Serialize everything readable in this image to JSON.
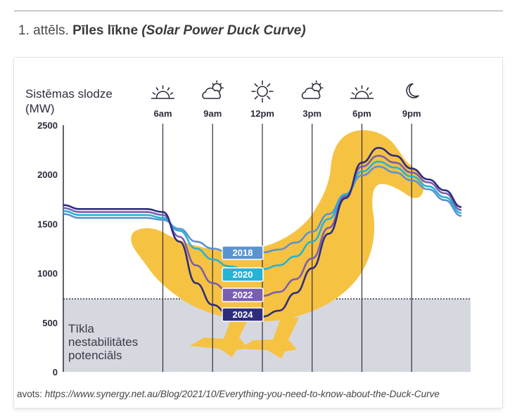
{
  "caption": {
    "number": "1. attēls.",
    "title": "Pīles līkne",
    "subtitle": "(Solar Power Duck Curve)"
  },
  "source": {
    "prefix": "avots:",
    "url": "https://www.synergy.net.au/Blog/2021/10/Everything-you-need-to-know-about-the-Duck-Curve"
  },
  "zone_label": "Tīkla\nnestabilitātes\npotenciāls",
  "colors": {
    "duck": "#f6c242",
    "zone": "#d6d8e0",
    "s2018": "#5b93cf",
    "s2020": "#25b3d6",
    "s2022": "#7a5fb0",
    "s2024": "#2f2d7e"
  },
  "time_icons": [
    {
      "label": "6am",
      "icon": "sunrise-icon"
    },
    {
      "label": "9am",
      "icon": "cloud-sun-icon"
    },
    {
      "label": "12pm",
      "icon": "sun-icon"
    },
    {
      "label": "3pm",
      "icon": "cloud-sun-icon"
    },
    {
      "label": "6pm",
      "icon": "sunset-icon"
    },
    {
      "label": "9pm",
      "icon": "moon-icon"
    }
  ],
  "chart_data": {
    "type": "line",
    "ylabel": "Sistēmas slodze\n(MW)",
    "ylim": [
      0,
      2500
    ],
    "yticks": [
      0,
      500,
      1000,
      1500,
      2000,
      2500
    ],
    "xlim": [
      0,
      24
    ],
    "grid": "vertical lines at 6am, 9am, 12pm, 3pm, 6pm, 9pm",
    "threshold": 740,
    "series": [
      {
        "name": "2018",
        "x": [
          0,
          1,
          3,
          5,
          6,
          7,
          8,
          9,
          10,
          11,
          12,
          13,
          14,
          15,
          16,
          17,
          18,
          19,
          20,
          21,
          22,
          23,
          24
        ],
        "y": [
          1600,
          1560,
          1560,
          1560,
          1540,
          1450,
          1320,
          1250,
          1210,
          1200,
          1210,
          1240,
          1310,
          1420,
          1600,
          1800,
          1990,
          2080,
          2020,
          1940,
          1850,
          1740,
          1580
        ]
      },
      {
        "name": "2020",
        "x": [
          0,
          1,
          3,
          5,
          6,
          7,
          8,
          9,
          10,
          11,
          12,
          13,
          14,
          15,
          16,
          17,
          18,
          19,
          20,
          21,
          22,
          23,
          24
        ],
        "y": [
          1630,
          1590,
          1590,
          1590,
          1560,
          1430,
          1250,
          1140,
          1070,
          1040,
          1040,
          1080,
          1170,
          1320,
          1550,
          1800,
          2030,
          2130,
          2070,
          1980,
          1880,
          1770,
          1610
        ]
      },
      {
        "name": "2022",
        "x": [
          0,
          1,
          3,
          5,
          6,
          7,
          8,
          9,
          10,
          11,
          12,
          13,
          14,
          15,
          16,
          17,
          18,
          19,
          20,
          21,
          22,
          23,
          24
        ],
        "y": [
          1660,
          1620,
          1620,
          1620,
          1590,
          1370,
          1080,
          900,
          810,
          770,
          770,
          810,
          940,
          1150,
          1460,
          1780,
          2080,
          2190,
          2120,
          2020,
          1920,
          1810,
          1640
        ]
      },
      {
        "name": "2024",
        "x": [
          0,
          1,
          3,
          5,
          6,
          7,
          8,
          9,
          10,
          11,
          12,
          13,
          14,
          15,
          16,
          17,
          18,
          19,
          20,
          21,
          22,
          23,
          24
        ],
        "y": [
          1690,
          1650,
          1650,
          1650,
          1620,
          1320,
          900,
          680,
          580,
          560,
          560,
          620,
          800,
          1050,
          1400,
          1760,
          2120,
          2270,
          2190,
          2060,
          1950,
          1840,
          1670
        ]
      }
    ]
  }
}
